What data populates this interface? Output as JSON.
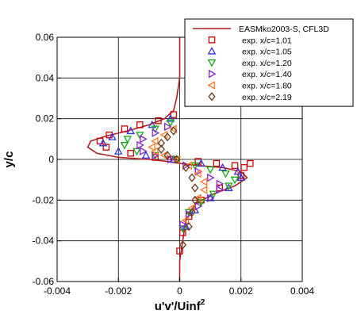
{
  "chart_data": {
    "type": "line",
    "xlabel": "u'v'/Uinf",
    "xlabel_sup": "2",
    "ylabel": "y/c",
    "xlim": [
      -0.004,
      0.004
    ],
    "ylim": [
      -0.06,
      0.06
    ],
    "xticks": [
      -0.004,
      -0.002,
      0,
      0.002,
      0.004
    ],
    "xtick_labels": [
      "-0.004",
      "-0.002",
      "0",
      "0.002",
      "0.004"
    ],
    "yticks": [
      -0.06,
      -0.04,
      -0.02,
      0,
      0.02,
      0.04,
      0.06
    ],
    "ytick_labels": [
      "-0.06",
      "-0.04",
      "-0.02",
      "0",
      "0.02",
      "0.04",
      "0.06"
    ],
    "grid": true,
    "legend_position": "top-right",
    "series": [
      {
        "name": "EASMko2003-S, CFL3D",
        "kind": "line",
        "color": "#b02020",
        "x": [
          0,
          0,
          -0.0001,
          -0.0002,
          -0.0005,
          -0.001,
          -0.0017,
          -0.0024,
          -0.0029,
          -0.003,
          -0.0027,
          -0.002,
          -0.001,
          -0.0004,
          0,
          0.0006,
          0.0014,
          0.002,
          0.0022,
          0.0018,
          0.0011,
          0.0005,
          0.0002,
          0.0001,
          0,
          0
        ],
        "y": [
          0.06,
          0.04,
          0.03,
          0.024,
          0.02,
          0.017,
          0.014,
          0.0115,
          0.009,
          0.006,
          0.003,
          0.001,
          0,
          -0.001,
          -0.002,
          -0.003,
          -0.004,
          -0.006,
          -0.009,
          -0.013,
          -0.017,
          -0.022,
          -0.03,
          -0.04,
          -0.05,
          -0.06
        ]
      },
      {
        "name": "exp. x/c=1.01",
        "kind": "marker",
        "marker": "square",
        "color": "#cc0000",
        "x": [
          -0.0002,
          -0.0007,
          -0.0013,
          -0.0018,
          -0.0023,
          -0.0026,
          -0.0024,
          -0.0016,
          -0.0008,
          -0.0002,
          0.0006,
          0.0012,
          0.0018,
          0.0021,
          0.0023,
          0.002,
          0.0013,
          0.0007,
          0.0003,
          0.0001,
          0
        ],
        "y": [
          0.022,
          0.019,
          0.017,
          0.015,
          0.012,
          0.009,
          0.006,
          0.003,
          0.001,
          0,
          -0.001,
          -0.002,
          -0.003,
          -0.004,
          -0.002,
          -0.008,
          -0.014,
          -0.02,
          -0.028,
          -0.036,
          -0.045
        ]
      },
      {
        "name": "exp. x/c=1.05",
        "kind": "marker",
        "marker": "triangle-up",
        "color": "#3333dd",
        "x": [
          -0.0003,
          -0.0009,
          -0.0016,
          -0.0022,
          -0.0025,
          -0.002,
          -0.0011,
          -0.0002,
          0.0007,
          0.0014,
          0.0019,
          0.002,
          0.0016,
          0.001,
          0.0005,
          0.0002
        ],
        "y": [
          0.02,
          0.017,
          0.014,
          0.011,
          0.008,
          0.004,
          0.002,
          0,
          -0.002,
          -0.004,
          -0.006,
          -0.009,
          -0.014,
          -0.019,
          -0.025,
          -0.033
        ]
      },
      {
        "name": "exp. x/c=1.20",
        "kind": "marker",
        "marker": "triangle-down",
        "color": "#11aa11",
        "x": [
          -0.0003,
          -0.0008,
          -0.0013,
          -0.0017,
          -0.0018,
          -0.0014,
          -0.0008,
          -0.0001,
          0.0005,
          0.001,
          0.0015,
          0.0018,
          0.0016,
          0.0011,
          0.0007,
          0.0003,
          0.0001
        ],
        "y": [
          0.018,
          0.015,
          0.012,
          0.01,
          0.007,
          0.004,
          0.002,
          0,
          -0.003,
          -0.005,
          -0.007,
          -0.01,
          -0.013,
          -0.017,
          -0.021,
          -0.026,
          -0.034
        ]
      },
      {
        "name": "exp. x/c=1.40",
        "kind": "marker",
        "marker": "triangle-right",
        "color": "#8822cc",
        "x": [
          -0.0004,
          -0.0008,
          -0.0012,
          -0.0013,
          -0.0012,
          -0.0008,
          -0.0003,
          0.0002,
          0.0006,
          0.001,
          0.0013,
          0.0013,
          0.001,
          0.0006,
          0.0003,
          0.0001
        ],
        "y": [
          0.016,
          0.013,
          0.01,
          0.007,
          0.004,
          0.002,
          0,
          -0.003,
          -0.006,
          -0.009,
          -0.012,
          -0.015,
          -0.019,
          -0.023,
          -0.027,
          -0.032
        ]
      },
      {
        "name": "exp. x/c=1.80",
        "kind": "marker",
        "marker": "triangle-left",
        "color": "#ff7722",
        "x": [
          -0.0002,
          -0.0005,
          -0.0008,
          -0.0009,
          -0.0008,
          -0.0005,
          -0.0001,
          0.0003,
          0.0006,
          0.0008,
          0.0008,
          0.0006,
          0.0004,
          0.0002
        ],
        "y": [
          0.015,
          0.012,
          0.009,
          0.006,
          0.004,
          0.002,
          0,
          -0.003,
          -0.007,
          -0.011,
          -0.015,
          -0.019,
          -0.024,
          -0.03
        ]
      },
      {
        "name": "exp. x/c=2.19",
        "kind": "marker",
        "marker": "diamond",
        "color": "#6b3b1b",
        "x": [
          -0.0002,
          -0.0004,
          -0.0006,
          -0.0006,
          -0.0004,
          -0.0001,
          0.0002,
          0.0004,
          0.0005,
          0.0005,
          0.0004,
          0.0003,
          0.0001
        ],
        "y": [
          0.014,
          0.011,
          0.008,
          0.005,
          0.002,
          0,
          -0.004,
          -0.009,
          -0.014,
          -0.02,
          -0.026,
          -0.033,
          -0.042
        ]
      }
    ]
  }
}
